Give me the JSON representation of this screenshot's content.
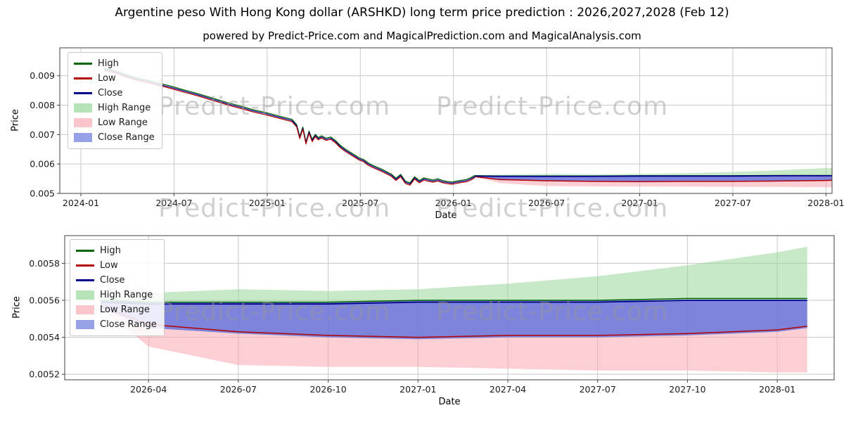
{
  "title": "Argentine peso With Hong Kong dollar (ARSHKD) long term price prediction : 2026,2027,2028 (Feb 12)",
  "subtitle": "powered by Predict-Price.com and MagicalPrediction.com and MagicalAnalysis.com",
  "watermark": {
    "text": "Predict-Price.com",
    "color": "#c8c8c8"
  },
  "colors": {
    "high": "#006400",
    "low": "#b30000",
    "close": "#00008b",
    "high_range": "#8fd492",
    "low_range": "#f7a8b0",
    "close_range": "#5f6fdc",
    "grid": "#c9c9c9",
    "frame": "#404040",
    "tick_text": "#1a1a1a"
  },
  "legend": [
    {
      "label": "High",
      "type": "line",
      "color": "#006400"
    },
    {
      "label": "Low",
      "type": "line",
      "color": "#b30000"
    },
    {
      "label": "Close",
      "type": "line",
      "color": "#00008b"
    },
    {
      "label": "High Range",
      "type": "patch",
      "color": "#8fd492"
    },
    {
      "label": "Low Range",
      "type": "patch",
      "color": "#f7a8b0"
    },
    {
      "label": "Close Range",
      "type": "patch",
      "color": "#5f6fdc"
    }
  ],
  "chart_data": [
    {
      "type": "line",
      "name": "history-and-forecast",
      "xlabel": "Date",
      "ylabel": "Price",
      "x_unit": "months since 2024-01",
      "xlim": [
        -1.36,
        48.39
      ],
      "ylim": [
        0.005,
        0.00995
      ],
      "grid": true,
      "legend_position": "upper left",
      "xticks": [
        {
          "t": 0,
          "label": "2024-01"
        },
        {
          "t": 6,
          "label": "2024-07"
        },
        {
          "t": 12,
          "label": "2025-01"
        },
        {
          "t": 18,
          "label": "2025-07"
        },
        {
          "t": 24,
          "label": "2026-01"
        },
        {
          "t": 30,
          "label": "2026-07"
        },
        {
          "t": 36,
          "label": "2027-01"
        },
        {
          "t": 42,
          "label": "2027-07"
        },
        {
          "t": 48,
          "label": "2028-01"
        }
      ],
      "yticks": [
        {
          "v": 0.005,
          "label": "0.005"
        },
        {
          "v": 0.006,
          "label": "0.006"
        },
        {
          "v": 0.007,
          "label": "0.007"
        },
        {
          "v": 0.008,
          "label": "0.008"
        },
        {
          "v": 0.009,
          "label": "0.009"
        }
      ],
      "series": {
        "history": {
          "t": [
            1.5,
            2,
            2.5,
            3,
            3.5,
            4,
            4.5,
            5,
            5.5,
            6,
            6.5,
            7,
            7.5,
            8,
            8.5,
            9,
            9.5,
            10,
            10.5,
            11,
            11.5,
            12,
            12.5,
            13,
            13.3,
            13.6,
            13.9,
            14.1,
            14.3,
            14.5,
            14.7,
            14.9,
            15.1,
            15.3,
            15.5,
            15.8,
            16.1,
            16.4,
            16.7,
            17,
            17.3,
            17.6,
            17.9,
            18.2,
            18.5,
            18.8,
            19.1,
            19.4,
            19.7,
            20,
            20.3,
            20.6,
            20.9,
            21.2,
            21.5,
            21.8,
            22.1,
            22.4,
            22.7,
            23,
            23.3,
            23.6,
            23.9,
            24.2,
            24.5,
            24.8,
            25.1,
            25.4
          ],
          "high": [
            0.00925,
            0.0092,
            0.00912,
            0.00902,
            0.00894,
            0.00888,
            0.00882,
            0.00875,
            0.00869,
            0.00862,
            0.00854,
            0.00847,
            0.0084,
            0.00832,
            0.00824,
            0.00816,
            0.00808,
            0.00801,
            0.00794,
            0.00786,
            0.0078,
            0.00774,
            0.00767,
            0.0076,
            0.00756,
            0.00752,
            0.00734,
            0.00694,
            0.00726,
            0.00676,
            0.00712,
            0.00684,
            0.00701,
            0.0069,
            0.00696,
            0.00688,
            0.00692,
            0.0068,
            0.00664,
            0.00652,
            0.00642,
            0.00632,
            0.00622,
            0.00616,
            0.00604,
            0.00596,
            0.00589,
            0.00582,
            0.00574,
            0.00566,
            0.00552,
            0.00565,
            0.00542,
            0.00536,
            0.00557,
            0.00544,
            0.00553,
            0.00549,
            0.00546,
            0.0055,
            0.00544,
            0.00541,
            0.00539,
            0.00542,
            0.00545,
            0.00547,
            0.00553,
            0.00562
          ],
          "low": [
            0.00917,
            0.00912,
            0.00904,
            0.00894,
            0.00886,
            0.0088,
            0.00874,
            0.00867,
            0.00861,
            0.00854,
            0.00846,
            0.00839,
            0.00832,
            0.00824,
            0.00816,
            0.00808,
            0.008,
            0.00793,
            0.00786,
            0.00778,
            0.00772,
            0.00766,
            0.00759,
            0.00752,
            0.00748,
            0.00744,
            0.00726,
            0.00686,
            0.00718,
            0.00668,
            0.00704,
            0.00676,
            0.00693,
            0.00682,
            0.00688,
            0.0068,
            0.00684,
            0.00672,
            0.00656,
            0.00644,
            0.00634,
            0.00624,
            0.00614,
            0.00608,
            0.00596,
            0.00588,
            0.00581,
            0.00574,
            0.00566,
            0.00558,
            0.00544,
            0.00557,
            0.00534,
            0.00528,
            0.00549,
            0.00536,
            0.00545,
            0.00541,
            0.00538,
            0.00542,
            0.00536,
            0.00533,
            0.00531,
            0.00534,
            0.00537,
            0.00539,
            0.00545,
            0.00554
          ],
          "close": [
            0.00921,
            0.00916,
            0.00908,
            0.00898,
            0.0089,
            0.00884,
            0.00878,
            0.00871,
            0.00865,
            0.00858,
            0.0085,
            0.00843,
            0.00836,
            0.00828,
            0.0082,
            0.00812,
            0.00804,
            0.00797,
            0.0079,
            0.00782,
            0.00776,
            0.0077,
            0.00763,
            0.00756,
            0.00752,
            0.00748,
            0.0073,
            0.0069,
            0.00722,
            0.00672,
            0.00708,
            0.0068,
            0.00697,
            0.00686,
            0.00692,
            0.00684,
            0.00688,
            0.00676,
            0.0066,
            0.00648,
            0.00638,
            0.00628,
            0.00618,
            0.00612,
            0.006,
            0.00592,
            0.00585,
            0.00578,
            0.0057,
            0.00562,
            0.00548,
            0.00561,
            0.00538,
            0.00532,
            0.00553,
            0.0054,
            0.00549,
            0.00545,
            0.00542,
            0.00546,
            0.0054,
            0.00537,
            0.00535,
            0.00538,
            0.00541,
            0.00543,
            0.00549,
            0.00558
          ]
        },
        "forecast": {
          "t": [
            25.4,
            27,
            30,
            33,
            36,
            39,
            42,
            45,
            48,
            49
          ],
          "high_line": [
            0.0056,
            0.00559,
            0.00559,
            0.00559,
            0.0056,
            0.0056,
            0.0056,
            0.00561,
            0.00561,
            0.00561
          ],
          "low_line": [
            0.00557,
            0.00547,
            0.00543,
            0.00541,
            0.0054,
            0.00541,
            0.00541,
            0.00542,
            0.00544,
            0.00546
          ],
          "close_line": [
            0.00559,
            0.00558,
            0.00558,
            0.00558,
            0.00559,
            0.00559,
            0.00559,
            0.0056,
            0.0056,
            0.0056
          ],
          "high_upper": [
            0.00562,
            0.00564,
            0.00566,
            0.00565,
            0.00566,
            0.00569,
            0.00573,
            0.00579,
            0.00586,
            0.00589
          ],
          "low_lower": [
            0.00556,
            0.00535,
            0.00525,
            0.00524,
            0.00524,
            0.00523,
            0.00522,
            0.00522,
            0.00521,
            0.00521
          ],
          "close_upper": [
            0.0056,
            0.00559,
            0.00559,
            0.00559,
            0.0056,
            0.0056,
            0.0056,
            0.0056,
            0.0056,
            0.0056
          ],
          "close_lower": [
            0.00556,
            0.00545,
            0.00542,
            0.0054,
            0.00539,
            0.0054,
            0.0054,
            0.00541,
            0.00543,
            0.00545
          ]
        }
      }
    },
    {
      "type": "line",
      "name": "forecast-zoom",
      "xlabel": "Date",
      "ylabel": "Price",
      "x_unit": "months since 2024-01",
      "xlim": [
        24.2,
        49.9
      ],
      "ylim": [
        0.00517,
        0.00595
      ],
      "grid": true,
      "legend_position": "upper left",
      "xticks": [
        {
          "t": 27,
          "label": "2026-04"
        },
        {
          "t": 30,
          "label": "2026-07"
        },
        {
          "t": 33,
          "label": "2026-10"
        },
        {
          "t": 36,
          "label": "2027-01"
        },
        {
          "t": 39,
          "label": "2027-04"
        },
        {
          "t": 42,
          "label": "2027-07"
        },
        {
          "t": 45,
          "label": "2027-10"
        },
        {
          "t": 48,
          "label": "2028-01"
        }
      ],
      "yticks": [
        {
          "v": 0.0052,
          "label": "0.0052"
        },
        {
          "v": 0.0054,
          "label": "0.0054"
        },
        {
          "v": 0.0056,
          "label": "0.0056"
        },
        {
          "v": 0.0058,
          "label": "0.0058"
        }
      ],
      "series": {
        "forecast": {
          "t": [
            25.4,
            27,
            30,
            33,
            36,
            39,
            42,
            45,
            48,
            49
          ],
          "high_line": [
            0.0056,
            0.00559,
            0.00559,
            0.00559,
            0.0056,
            0.0056,
            0.0056,
            0.00561,
            0.00561,
            0.00561
          ],
          "low_line": [
            0.00557,
            0.00547,
            0.00543,
            0.00541,
            0.0054,
            0.00541,
            0.00541,
            0.00542,
            0.00544,
            0.00546
          ],
          "close_line": [
            0.00559,
            0.00558,
            0.00558,
            0.00558,
            0.00559,
            0.00559,
            0.00559,
            0.0056,
            0.0056,
            0.0056
          ],
          "high_upper": [
            0.00562,
            0.00564,
            0.00566,
            0.00565,
            0.00566,
            0.00569,
            0.00573,
            0.00579,
            0.00586,
            0.00589
          ],
          "low_lower": [
            0.00556,
            0.00535,
            0.00525,
            0.00524,
            0.00524,
            0.00523,
            0.00522,
            0.00522,
            0.00521,
            0.00521
          ],
          "close_upper": [
            0.0056,
            0.00559,
            0.00559,
            0.00559,
            0.0056,
            0.0056,
            0.0056,
            0.0056,
            0.0056,
            0.0056
          ],
          "close_lower": [
            0.00556,
            0.00545,
            0.00542,
            0.0054,
            0.00539,
            0.0054,
            0.0054,
            0.00541,
            0.00543,
            0.00545
          ]
        }
      }
    }
  ]
}
